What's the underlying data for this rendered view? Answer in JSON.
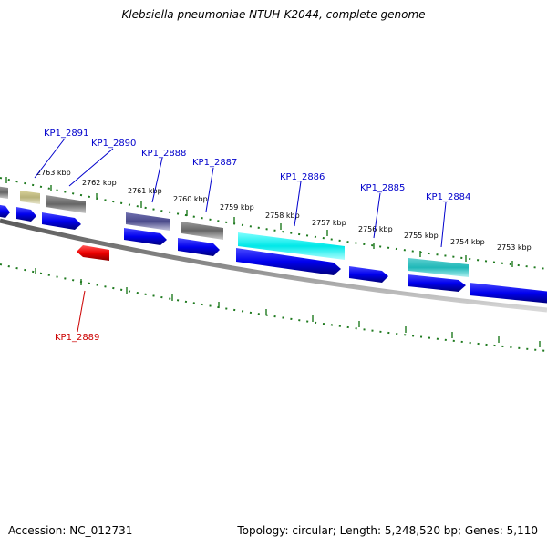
{
  "title": "Klebsiella pneumoniae NTUH-K2044, complete genome",
  "footer": {
    "accession": "Accession: NC_012731",
    "summary": "Topology: circular; Length: 5,248,520 bp; Genes: 5,110"
  },
  "colors": {
    "axis": "#8a8a8a",
    "tick": "#1f7a1f",
    "forward_gene": "#0000ee",
    "reverse_gene": "#ee0000",
    "label_forward": "#0000cc",
    "label_reverse": "#cc0000",
    "grey_feature": "#666666",
    "khaki_feature": "#b8b27a",
    "slate_feature": "#4a4a8a",
    "cyan_feature": "#00e0e0",
    "teal_feature": "#20c0c0"
  },
  "scale_labels": [
    "2763 kbp",
    "2762 kbp",
    "2761 kbp",
    "2760 kbp",
    "2759 kbp",
    "2758 kbp",
    "2757 kbp",
    "2756 kbp",
    "2755 kbp",
    "2754 kbp",
    "2753 kbp"
  ],
  "gene_labels": [
    {
      "name": "KP1_2891",
      "strand": "forward"
    },
    {
      "name": "KP1_2890",
      "strand": "forward"
    },
    {
      "name": "KP1_2888",
      "strand": "forward"
    },
    {
      "name": "KP1_2887",
      "strand": "forward"
    },
    {
      "name": "KP1_2886",
      "strand": "forward"
    },
    {
      "name": "KP1_2885",
      "strand": "forward"
    },
    {
      "name": "KP1_2884",
      "strand": "forward"
    },
    {
      "name": "KP1_2889",
      "strand": "reverse"
    }
  ]
}
